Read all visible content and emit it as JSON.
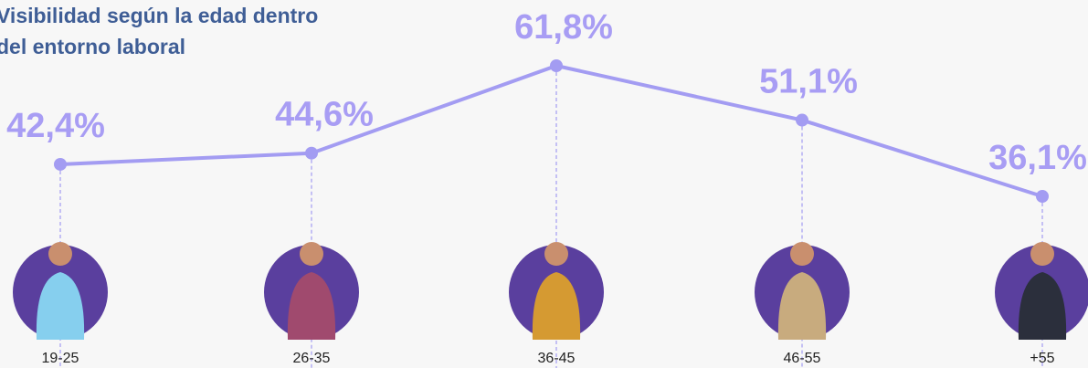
{
  "chart_data": {
    "type": "line",
    "title": "Visibilidad según la edad dentro del entorno laboral",
    "categories": [
      "19-25",
      "26-35",
      "36-45",
      "46-55",
      "+55"
    ],
    "values": [
      42.4,
      44.6,
      61.8,
      51.1,
      36.1
    ],
    "value_labels": [
      "42,4%",
      "44,6%",
      "61,8%",
      "51,1%",
      "36,1%"
    ],
    "color": "#a39cf2"
  }
}
